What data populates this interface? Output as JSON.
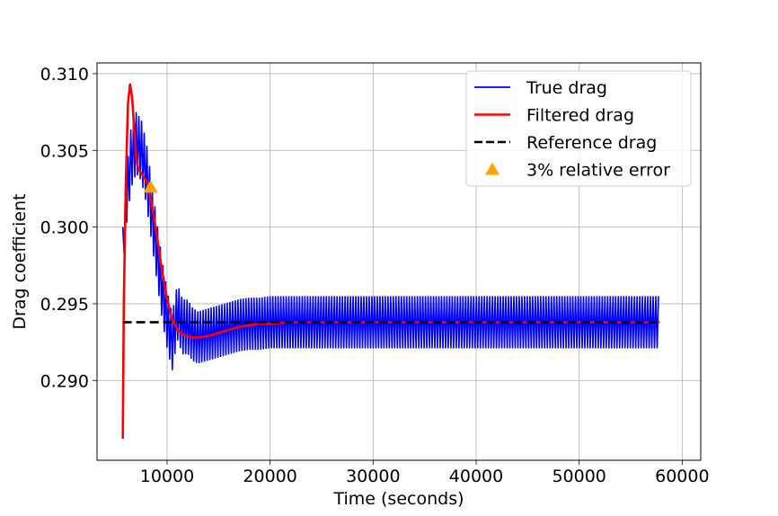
{
  "chart_data": {
    "type": "line",
    "title": "",
    "xlabel": "Time (seconds)",
    "ylabel": "Drag coefficient",
    "xlim": [
      3200,
      61800
    ],
    "ylim": [
      0.2848,
      0.3107
    ],
    "x_ticks": [
      10000,
      20000,
      30000,
      40000,
      50000,
      60000
    ],
    "x_tick_labels": [
      "10000",
      "20000",
      "30000",
      "40000",
      "50000",
      "60000"
    ],
    "y_ticks": [
      0.29,
      0.295,
      0.3,
      0.305,
      0.31
    ],
    "y_tick_labels": [
      "0.290",
      "0.295",
      "0.300",
      "0.305",
      "0.310"
    ],
    "grid": true,
    "legend_position": "top-right",
    "series": [
      {
        "name": "True drag",
        "color": "#0000ff",
        "style": "solid",
        "kind": "oscillating-band",
        "center": {
          "x": [
            5700,
            6000,
            6500,
            7000,
            7500,
            8000,
            8500,
            9000,
            9500,
            10000,
            10500,
            11000,
            11500,
            12000,
            12500,
            13000,
            13500,
            14000,
            15000,
            16000,
            17000,
            18000,
            19000,
            20000,
            22000,
            25000,
            30000,
            40000,
            50000,
            57800
          ],
          "y": [
            0.2985,
            0.3015,
            0.3045,
            0.3055,
            0.305,
            0.3035,
            0.301,
            0.2985,
            0.296,
            0.294,
            0.2925,
            0.2945,
            0.2935,
            0.2935,
            0.293,
            0.2928,
            0.2929,
            0.293,
            0.2932,
            0.2934,
            0.2936,
            0.2937,
            0.2937,
            0.2938,
            0.2938,
            0.2938,
            0.2938,
            0.2938,
            0.2938,
            0.2938
          ]
        },
        "amplitude": {
          "x": [
            5700,
            6500,
            8000,
            10000,
            13000,
            20000,
            57800
          ],
          "y": [
            0.0015,
            0.002,
            0.002,
            0.0019,
            0.0017,
            0.0017,
            0.0017
          ]
        }
      },
      {
        "name": "Filtered drag",
        "color": "#ff0000",
        "style": "solid",
        "x": [
          5700,
          5800,
          6000,
          6200,
          6400,
          6600,
          6800,
          7000,
          7200,
          7500,
          8000,
          8500,
          9000,
          9500,
          10000,
          10500,
          11000,
          11500,
          12000,
          12500,
          13000,
          14000,
          15000,
          16000,
          17000,
          18000,
          19000,
          20000,
          22000,
          25000,
          30000,
          40000,
          50000,
          57800
        ],
        "y": [
          0.2862,
          0.295,
          0.303,
          0.308,
          0.3093,
          0.3085,
          0.3065,
          0.3045,
          0.3038,
          0.3035,
          0.303,
          0.3015,
          0.2995,
          0.2972,
          0.2953,
          0.294,
          0.2933,
          0.293,
          0.2929,
          0.2928,
          0.2928,
          0.2929,
          0.2931,
          0.2933,
          0.2935,
          0.2936,
          0.2937,
          0.2937,
          0.2938,
          0.2938,
          0.2938,
          0.2938,
          0.2938,
          0.2938
        ]
      },
      {
        "name": "Reference drag",
        "color": "#000000",
        "style": "dashed",
        "x": [
          5700,
          57800
        ],
        "y": [
          0.2938,
          0.2938
        ]
      },
      {
        "name": "3% relative error",
        "color": "#ffa500",
        "style": "marker-triangle",
        "x": [
          8400
        ],
        "y": [
          0.3026
        ]
      }
    ]
  }
}
